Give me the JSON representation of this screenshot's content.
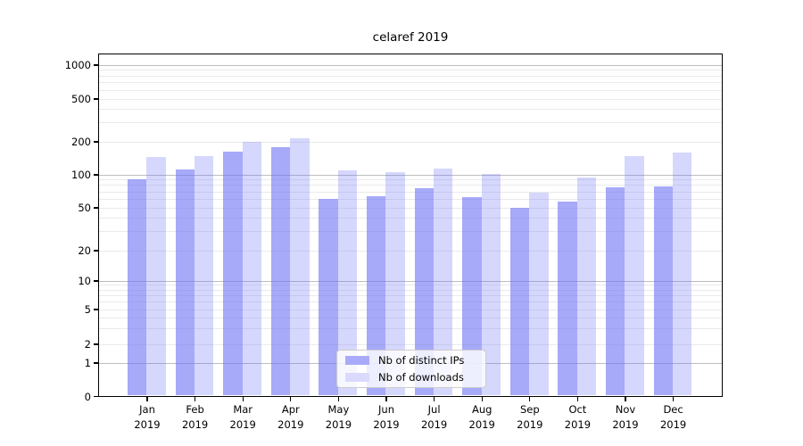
{
  "chart_data": {
    "type": "bar",
    "title": "celaref 2019",
    "categories": [
      "Jan",
      "Feb",
      "Mar",
      "Apr",
      "May",
      "Jun",
      "Jul",
      "Aug",
      "Sep",
      "Oct",
      "Nov",
      "Dec"
    ],
    "year": "2019",
    "series": [
      {
        "name": "Nb of distinct IPs",
        "color": "rgba(108,112,245,0.60)",
        "solid_color": "#a9abfa",
        "values": [
          90,
          110,
          160,
          176,
          60,
          63,
          75,
          62,
          50,
          57,
          76,
          78
        ]
      },
      {
        "name": "Nb of downloads",
        "color": "rgba(108,112,245,0.28)",
        "solid_color": "#d9dafc",
        "values": [
          143,
          147,
          197,
          212,
          108,
          104,
          114,
          101,
          68,
          93,
          148,
          158
        ]
      }
    ],
    "xlabel": "",
    "ylabel": "",
    "yscale": "symlog",
    "yticks": [
      0,
      1,
      2,
      5,
      10,
      20,
      50,
      100,
      200,
      500,
      1000
    ],
    "ylim": [
      0,
      1000
    ],
    "grid": "on",
    "legend_position": "lower center"
  },
  "axes": {
    "grid_major_color": "#bdbdbd",
    "grid_minor_color": "#eaeaea",
    "spine_color": "#000000"
  }
}
